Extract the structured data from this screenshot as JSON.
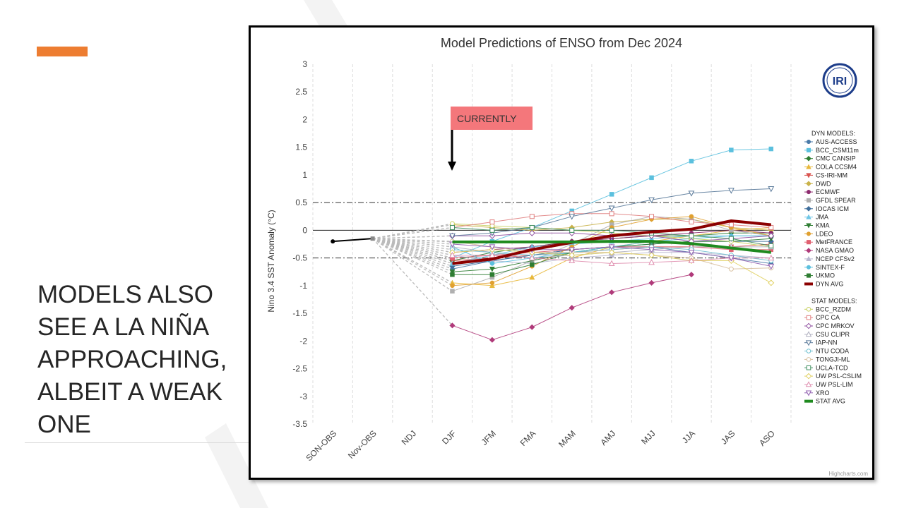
{
  "slide": {
    "title": "MODELS ALSO SEE A LA NIÑA APPROACHING, ALBEIT A WEAK ONE",
    "accent_color": "#ED7D31"
  },
  "chart_data": {
    "type": "line",
    "title": "Model Predictions of ENSO from Dec 2024",
    "ylabel": "Nino 3.4 SST Anomaly (°C)",
    "xlabel": "",
    "categories": [
      "SON-OBS",
      "Nov-OBS",
      "NDJ",
      "DJF",
      "JFM",
      "FMA",
      "MAM",
      "AMJ",
      "MJJ",
      "JJA",
      "JAS",
      "ASO"
    ],
    "ylim": [
      -3.5,
      3
    ],
    "yticks": [
      "3",
      "2.5",
      "2",
      "1.5",
      "1",
      "0.5",
      "0",
      "-0.5",
      "-1",
      "-1.5",
      "-2",
      "-2.5",
      "-3",
      "-3.5"
    ],
    "grid": "vertical dashed",
    "legend_position": "right",
    "reference_lines": [
      0.5,
      -0.5
    ],
    "observed": [
      -0.2,
      -0.15
    ],
    "annotation": {
      "text": "CURRENTLY",
      "category": "DJF",
      "color": "#F4777B"
    },
    "logo": "IRI",
    "credit": "Highcharts.com",
    "dyn_header": "DYN MODELS:",
    "stat_header": "STAT MODELS:",
    "series": [
      {
        "name": "AUS-ACCESS",
        "group": "dyn",
        "color": "#4a7aa8",
        "marker": "circle",
        "values": [
          null,
          null,
          null,
          -0.7,
          -0.55,
          -0.45,
          -0.35,
          -0.3,
          -0.3,
          -0.4,
          -0.5,
          -0.6
        ]
      },
      {
        "name": "BCC_CSM11m",
        "group": "dyn",
        "color": "#5bc0de",
        "marker": "square",
        "values": [
          null,
          null,
          null,
          -0.5,
          -0.2,
          0.05,
          0.35,
          0.65,
          0.95,
          1.25,
          1.45,
          1.47
        ]
      },
      {
        "name": "CMC CANSIP",
        "group": "dyn",
        "color": "#2e7d32",
        "marker": "diamond",
        "values": [
          null,
          null,
          null,
          -0.55,
          -0.4,
          -0.3,
          -0.2,
          -0.15,
          -0.1,
          -0.1,
          -0.05,
          -0.05
        ]
      },
      {
        "name": "COLA CCSM4",
        "group": "dyn",
        "color": "#e8b83a",
        "marker": "triangle",
        "values": [
          null,
          null,
          null,
          -0.95,
          -1.0,
          -0.85,
          -0.5,
          -0.3,
          -0.2,
          -0.1,
          0.0,
          0.05
        ]
      },
      {
        "name": "CS-IRI-MM",
        "group": "dyn",
        "color": "#d9534f",
        "marker": "triangle-down",
        "values": [
          null,
          null,
          null,
          -0.55,
          -0.5,
          -0.45,
          -0.4,
          -0.35,
          -0.3,
          -0.3,
          -0.3,
          -0.25
        ]
      },
      {
        "name": "DWD",
        "group": "dyn",
        "color": "#c9b24a",
        "marker": "diamond",
        "values": [
          null,
          null,
          null,
          0.1,
          0.05,
          0.0,
          0.05,
          0.15,
          0.2,
          0.2,
          0.05,
          0.0
        ]
      },
      {
        "name": "ECMWF",
        "group": "dyn",
        "color": "#8e2c6f",
        "marker": "circle",
        "values": [
          null,
          null,
          null,
          -0.4,
          -0.35,
          -0.3,
          -0.2,
          -0.15,
          -0.1,
          -0.05,
          0.0,
          -0.05
        ]
      },
      {
        "name": "GFDL SPEAR",
        "group": "dyn",
        "color": "#b0b0b0",
        "marker": "square",
        "values": [
          null,
          null,
          null,
          -1.1,
          -0.85,
          -0.55,
          -0.25,
          0.1,
          0.25,
          0.2,
          0.0,
          -0.1
        ]
      },
      {
        "name": "IOCAS ICM",
        "group": "dyn",
        "color": "#3f6e9b",
        "marker": "diamond",
        "values": [
          null,
          null,
          null,
          -0.65,
          -0.55,
          -0.45,
          -0.35,
          -0.3,
          -0.25,
          -0.2,
          -0.2,
          -0.2
        ]
      },
      {
        "name": "JMA",
        "group": "dyn",
        "color": "#6ec6e6",
        "marker": "triangle",
        "values": [
          null,
          null,
          null,
          -0.6,
          -0.45,
          -0.3,
          -0.25,
          -0.2,
          -0.15,
          -0.1,
          -0.1,
          -0.1
        ]
      },
      {
        "name": "KMA",
        "group": "dyn",
        "color": "#2e7d32",
        "marker": "triangle-down",
        "values": [
          null,
          null,
          null,
          -0.75,
          -0.7,
          -0.55,
          -0.4,
          -0.3,
          -0.25,
          -0.2,
          -0.2,
          -0.15
        ]
      },
      {
        "name": "LDEO",
        "group": "dyn",
        "color": "#e0a030",
        "marker": "circle",
        "values": [
          null,
          null,
          null,
          -1.0,
          -0.95,
          -0.65,
          -0.3,
          0.05,
          0.2,
          0.25,
          0.05,
          -0.1
        ]
      },
      {
        "name": "MetFRANCE",
        "group": "dyn",
        "color": "#e06070",
        "marker": "square",
        "values": [
          null,
          null,
          null,
          -0.5,
          -0.45,
          -0.4,
          -0.35,
          -0.3,
          -0.3,
          -0.3,
          -0.35,
          -0.35
        ]
      },
      {
        "name": "NASA GMAO",
        "group": "dyn",
        "color": "#b03a7a",
        "marker": "diamond",
        "values": [
          null,
          null,
          null,
          -1.72,
          -1.98,
          -1.75,
          -1.4,
          -1.12,
          -0.95,
          -0.8,
          null,
          null
        ]
      },
      {
        "name": "NCEP CFSv2",
        "group": "dyn",
        "color": "#b8b8d0",
        "marker": "triangle",
        "values": [
          null,
          null,
          null,
          -0.45,
          -0.55,
          -0.6,
          -0.5,
          -0.45,
          -0.4,
          -0.4,
          -0.45,
          -0.5
        ]
      },
      {
        "name": "SINTEX-F",
        "group": "dyn",
        "color": "#5bc0de",
        "marker": "circle",
        "values": [
          null,
          null,
          null,
          -0.3,
          -0.6,
          -0.5,
          -0.4,
          -0.3,
          -0.2,
          -0.15,
          -0.1,
          -0.1
        ]
      },
      {
        "name": "UKMO",
        "group": "dyn",
        "color": "#2e7d32",
        "marker": "square",
        "values": [
          null,
          null,
          null,
          -0.8,
          -0.8,
          -0.62,
          -0.4,
          null,
          null,
          null,
          null,
          null
        ]
      },
      {
        "name": "DYN AVG",
        "group": "dyn",
        "color": "#8b0000",
        "marker": "none",
        "values": [
          null,
          null,
          null,
          -0.6,
          -0.52,
          -0.35,
          -0.22,
          -0.1,
          -0.03,
          0.02,
          0.17,
          0.1
        ]
      },
      {
        "name": "BCC_RZDM",
        "group": "stat",
        "color": "#c8d060",
        "marker": "circle-open",
        "values": [
          null,
          null,
          null,
          0.12,
          0.08,
          0.05,
          0.0,
          -0.05,
          -0.1,
          -0.15,
          -0.2,
          -0.3
        ]
      },
      {
        "name": "CPC CA",
        "group": "stat",
        "color": "#e08080",
        "marker": "square-open",
        "values": [
          null,
          null,
          null,
          0.05,
          0.15,
          0.25,
          0.3,
          0.3,
          0.25,
          0.15,
          0.1,
          0.05
        ]
      },
      {
        "name": "CPC MRKOV",
        "group": "stat",
        "color": "#9050a0",
        "marker": "diamond-open",
        "values": [
          null,
          null,
          null,
          -0.1,
          -0.1,
          -0.05,
          -0.05,
          -0.1,
          -0.1,
          -0.2,
          -0.15,
          -0.1
        ]
      },
      {
        "name": "CSU CLIPR",
        "group": "stat",
        "color": "#b0b0c0",
        "marker": "triangle-open",
        "values": [
          null,
          null,
          null,
          -0.3,
          -0.4,
          -0.5,
          -0.45,
          -0.4,
          -0.35,
          -0.3,
          -0.3,
          -0.3
        ]
      },
      {
        "name": "IAP-NN",
        "group": "stat",
        "color": "#5a7a9a",
        "marker": "triangle-down-open",
        "values": [
          null,
          null,
          null,
          -0.1,
          -0.05,
          0.05,
          0.25,
          0.4,
          0.55,
          0.67,
          0.72,
          0.75
        ]
      },
      {
        "name": "NTU CODA",
        "group": "stat",
        "color": "#70c0d0",
        "marker": "circle-open",
        "values": [
          null,
          null,
          null,
          -0.35,
          -0.4,
          -0.45,
          -0.4,
          -0.35,
          -0.3,
          -0.35,
          -0.45,
          -0.55
        ]
      },
      {
        "name": "TONGJI-ML",
        "group": "stat",
        "color": "#d8c0a0",
        "marker": "circle-open",
        "values": [
          null,
          null,
          null,
          -0.2,
          -0.3,
          -0.4,
          -0.4,
          -0.4,
          -0.45,
          -0.5,
          -0.7,
          -0.68
        ]
      },
      {
        "name": "UCLA-TCD",
        "group": "stat",
        "color": "#3e8e5e",
        "marker": "square-open",
        "values": [
          null,
          null,
          null,
          0.05,
          0.0,
          0.05,
          0.0,
          0.0,
          -0.05,
          -0.1,
          -0.15,
          -0.28
        ]
      },
      {
        "name": "UW PSL-CSLIM",
        "group": "stat",
        "color": "#e0d060",
        "marker": "diamond-open",
        "values": [
          null,
          null,
          null,
          -0.4,
          -0.35,
          -0.4,
          -0.45,
          -0.4,
          -0.45,
          -0.55,
          -0.55,
          -0.95
        ]
      },
      {
        "name": "UW PSL-LIM",
        "group": "stat",
        "color": "#e090b0",
        "marker": "triangle-open",
        "values": [
          null,
          null,
          null,
          -0.45,
          -0.45,
          -0.5,
          -0.55,
          -0.6,
          -0.58,
          -0.55,
          -0.5,
          -0.5
        ]
      },
      {
        "name": "XRO",
        "group": "stat",
        "color": "#9060b0",
        "marker": "triangle-down-open",
        "values": [
          null,
          null,
          null,
          -0.25,
          -0.3,
          -0.35,
          -0.35,
          -0.3,
          -0.35,
          -0.4,
          -0.5,
          -0.65
        ]
      },
      {
        "name": "STAT AVG",
        "group": "stat",
        "color": "#1f8a1f",
        "marker": "none",
        "values": [
          null,
          null,
          null,
          -0.21,
          -0.21,
          -0.21,
          -0.21,
          -0.2,
          -0.2,
          -0.24,
          -0.32,
          -0.4
        ]
      }
    ]
  }
}
